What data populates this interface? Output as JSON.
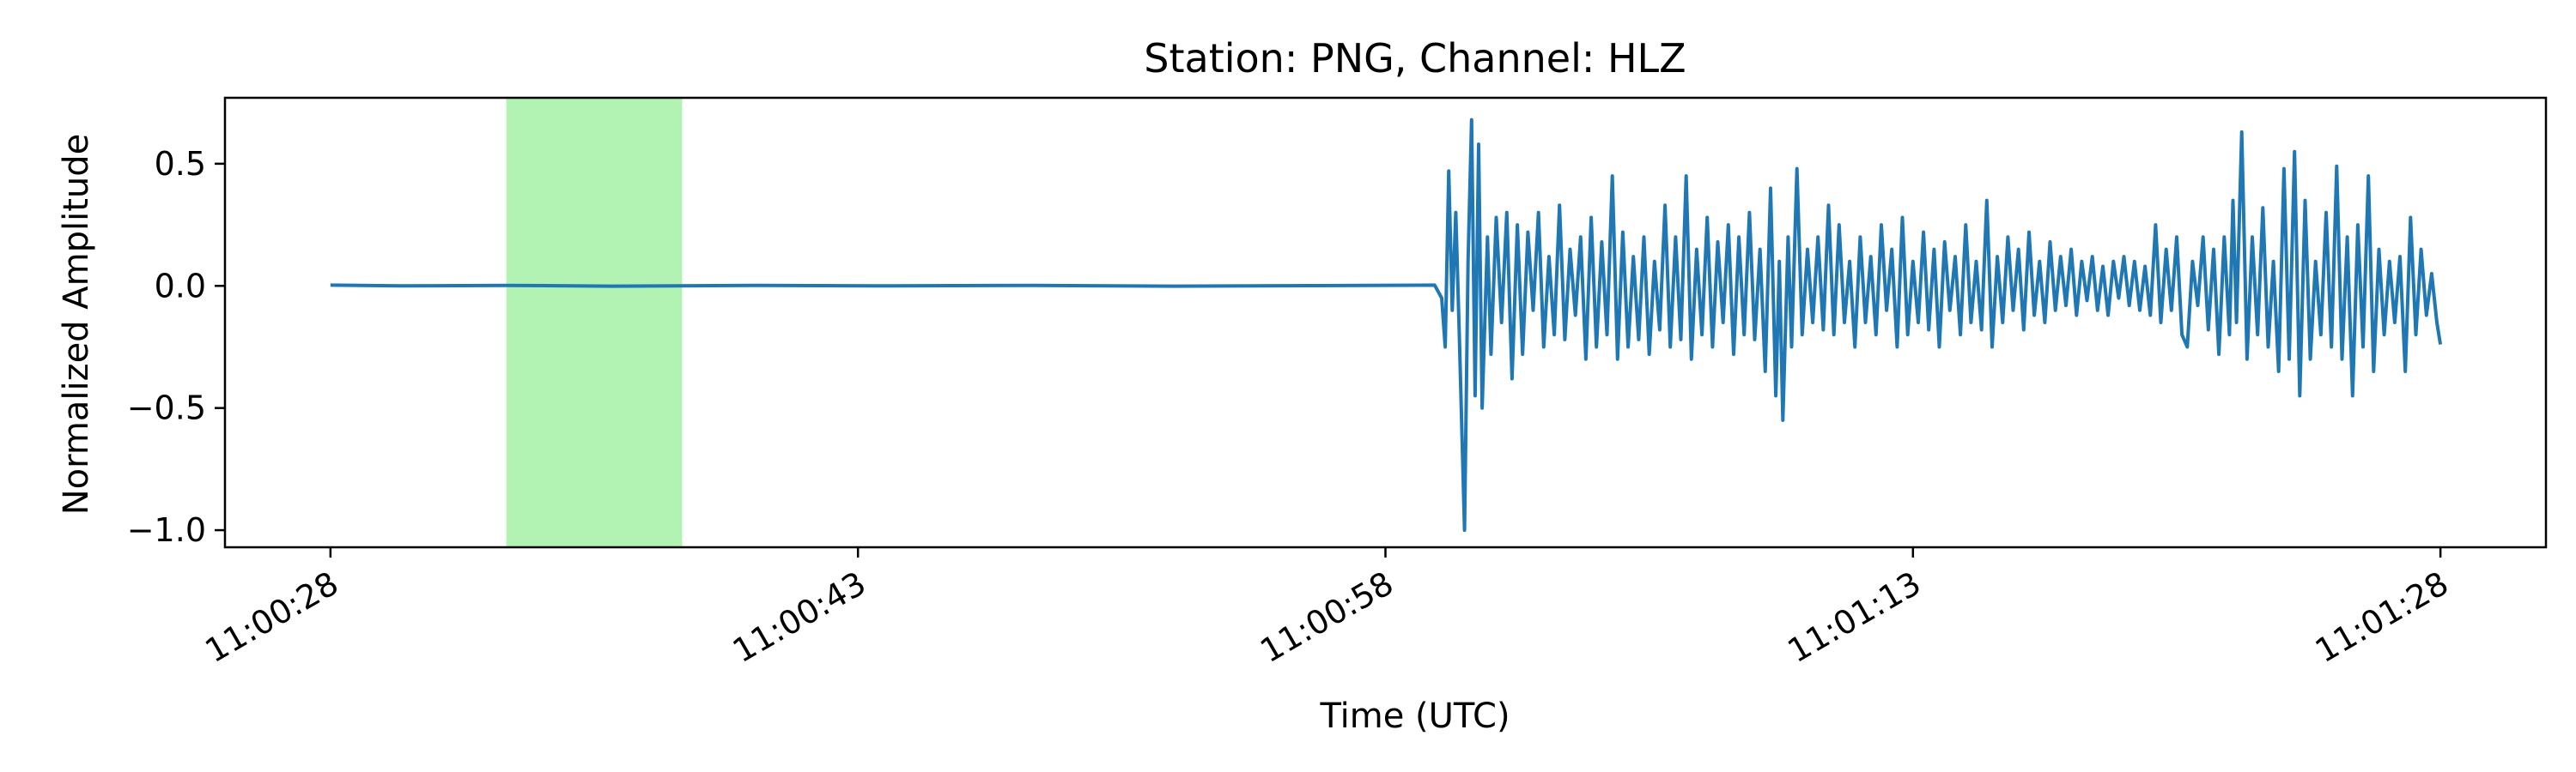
{
  "chart_data": {
    "type": "line",
    "title": "Station: PNG, Channel: HLZ",
    "xlabel": "Time (UTC)",
    "ylabel": "Normalized Amplitude",
    "xlim": [
      "11:00:25",
      "11:01:31"
    ],
    "ylim": [
      -1.07,
      0.77
    ],
    "grid": false,
    "x_ticks": [
      "11:00:28",
      "11:00:43",
      "11:00:58",
      "11:01:13",
      "11:01:28"
    ],
    "y_ticks": [
      0.5,
      0.0,
      -0.5,
      -1.0
    ],
    "y_tick_labels": [
      "0.5",
      "0.0",
      "−0.5",
      "−1.0"
    ],
    "highlight": {
      "start": "11:00:33",
      "end": "11:00:38",
      "color": "#b2f2b2"
    },
    "series": [
      {
        "color": "#1f77b4",
        "points": [
          [
            "11:00:28.0",
            0.003
          ],
          [
            "11:00:30.0",
            0.0
          ],
          [
            "11:00:33.0",
            0.002
          ],
          [
            "11:00:36.0",
            -0.001
          ],
          [
            "11:00:40.0",
            0.002
          ],
          [
            "11:00:44.0",
            0.0
          ],
          [
            "11:00:48.0",
            0.002
          ],
          [
            "11:00:52.0",
            -0.001
          ],
          [
            "11:00:56.0",
            0.001
          ],
          [
            "11:00:59.4",
            0.003
          ],
          [
            "11:00:59.6",
            -0.05
          ],
          [
            "11:00:59.7",
            -0.25
          ],
          [
            "11:00:59.8",
            0.47
          ],
          [
            "11:00:59.9",
            -0.1
          ],
          [
            "11:01:00.0",
            0.3
          ],
          [
            "11:01:00.1",
            -0.2
          ],
          [
            "11:01:00.25",
            -1.0
          ],
          [
            "11:01:00.35",
            0.1
          ],
          [
            "11:01:00.45",
            0.68
          ],
          [
            "11:01:00.55",
            -0.45
          ],
          [
            "11:01:00.65",
            0.58
          ],
          [
            "11:01:00.75",
            -0.5
          ],
          [
            "11:01:00.9",
            0.2
          ],
          [
            "11:01:01.0",
            -0.28
          ],
          [
            "11:01:01.15",
            0.28
          ],
          [
            "11:01:01.3",
            -0.15
          ],
          [
            "11:01:01.45",
            0.3
          ],
          [
            "11:01:01.6",
            -0.38
          ],
          [
            "11:01:01.75",
            0.25
          ],
          [
            "11:01:01.9",
            -0.28
          ],
          [
            "11:01:02.05",
            0.22
          ],
          [
            "11:01:02.2",
            -0.1
          ],
          [
            "11:01:02.35",
            0.3
          ],
          [
            "11:01:02.5",
            -0.25
          ],
          [
            "11:01:02.65",
            0.12
          ],
          [
            "11:01:02.8",
            -0.2
          ],
          [
            "11:01:02.95",
            0.33
          ],
          [
            "11:01:03.1",
            -0.22
          ],
          [
            "11:01:03.25",
            0.15
          ],
          [
            "11:01:03.4",
            -0.12
          ],
          [
            "11:01:03.55",
            0.2
          ],
          [
            "11:01:03.7",
            -0.3
          ],
          [
            "11:01:03.85",
            0.28
          ],
          [
            "11:01:04.0",
            -0.25
          ],
          [
            "11:01:04.15",
            0.18
          ],
          [
            "11:01:04.3",
            -0.2
          ],
          [
            "11:01:04.45",
            0.45
          ],
          [
            "11:01:04.6",
            -0.3
          ],
          [
            "11:01:04.75",
            0.22
          ],
          [
            "11:01:04.9",
            -0.25
          ],
          [
            "11:01:05.05",
            0.12
          ],
          [
            "11:01:05.2",
            -0.22
          ],
          [
            "11:01:05.35",
            0.2
          ],
          [
            "11:01:05.5",
            -0.28
          ],
          [
            "11:01:05.65",
            0.1
          ],
          [
            "11:01:05.8",
            -0.18
          ],
          [
            "11:01:05.95",
            0.33
          ],
          [
            "11:01:06.1",
            -0.25
          ],
          [
            "11:01:06.25",
            0.2
          ],
          [
            "11:01:06.4",
            -0.22
          ],
          [
            "11:01:06.55",
            0.45
          ],
          [
            "11:01:06.7",
            -0.3
          ],
          [
            "11:01:06.85",
            0.15
          ],
          [
            "11:01:07.0",
            -0.2
          ],
          [
            "11:01:07.15",
            0.28
          ],
          [
            "11:01:07.3",
            -0.25
          ],
          [
            "11:01:07.45",
            0.18
          ],
          [
            "11:01:07.6",
            -0.15
          ],
          [
            "11:01:07.75",
            0.25
          ],
          [
            "11:01:07.9",
            -0.28
          ],
          [
            "11:01:08.05",
            0.2
          ],
          [
            "11:01:08.2",
            -0.2
          ],
          [
            "11:01:08.35",
            0.3
          ],
          [
            "11:01:08.5",
            -0.22
          ],
          [
            "11:01:08.65",
            0.15
          ],
          [
            "11:01:08.8",
            -0.35
          ],
          [
            "11:01:08.95",
            0.4
          ],
          [
            "11:01:09.1",
            -0.45
          ],
          [
            "11:01:09.2",
            0.1
          ],
          [
            "11:01:09.3",
            -0.55
          ],
          [
            "11:01:09.45",
            0.2
          ],
          [
            "11:01:09.55",
            -0.25
          ],
          [
            "11:01:09.7",
            0.48
          ],
          [
            "11:01:09.85",
            -0.2
          ],
          [
            "11:01:10.0",
            0.15
          ],
          [
            "11:01:10.15",
            -0.15
          ],
          [
            "11:01:10.3",
            0.2
          ],
          [
            "11:01:10.45",
            -0.18
          ],
          [
            "11:01:10.6",
            0.33
          ],
          [
            "11:01:10.75",
            -0.2
          ],
          [
            "11:01:10.9",
            0.25
          ],
          [
            "11:01:11.05",
            -0.15
          ],
          [
            "11:01:11.2",
            0.1
          ],
          [
            "11:01:11.35",
            -0.25
          ],
          [
            "11:01:11.5",
            0.2
          ],
          [
            "11:01:11.65",
            -0.15
          ],
          [
            "11:01:11.8",
            0.12
          ],
          [
            "11:01:11.95",
            -0.2
          ],
          [
            "11:01:12.1",
            0.25
          ],
          [
            "11:01:12.25",
            -0.1
          ],
          [
            "11:01:12.4",
            0.15
          ],
          [
            "11:01:12.55",
            -0.25
          ],
          [
            "11:01:12.7",
            0.28
          ],
          [
            "11:01:12.85",
            -0.2
          ],
          [
            "11:01:13.0",
            0.1
          ],
          [
            "11:01:13.15",
            -0.15
          ],
          [
            "11:01:13.3",
            0.22
          ],
          [
            "11:01:13.45",
            -0.18
          ],
          [
            "11:01:13.6",
            0.15
          ],
          [
            "11:01:13.75",
            -0.25
          ],
          [
            "11:01:13.9",
            0.18
          ],
          [
            "11:01:14.05",
            -0.1
          ],
          [
            "11:01:14.2",
            0.12
          ],
          [
            "11:01:14.35",
            -0.2
          ],
          [
            "11:01:14.5",
            0.25
          ],
          [
            "11:01:14.65",
            -0.15
          ],
          [
            "11:01:14.8",
            0.1
          ],
          [
            "11:01:14.95",
            -0.18
          ],
          [
            "11:01:15.1",
            0.35
          ],
          [
            "11:01:15.25",
            -0.25
          ],
          [
            "11:01:15.4",
            0.12
          ],
          [
            "11:01:15.55",
            -0.15
          ],
          [
            "11:01:15.7",
            0.2
          ],
          [
            "11:01:15.85",
            -0.1
          ],
          [
            "11:01:16.0",
            0.15
          ],
          [
            "11:01:16.15",
            -0.18
          ],
          [
            "11:01:16.3",
            0.22
          ],
          [
            "11:01:16.45",
            -0.12
          ],
          [
            "11:01:16.6",
            0.1
          ],
          [
            "11:01:16.75",
            -0.15
          ],
          [
            "11:01:16.9",
            0.18
          ],
          [
            "11:01:17.05",
            -0.1
          ],
          [
            "11:01:17.2",
            0.12
          ],
          [
            "11:01:17.35",
            -0.08
          ],
          [
            "11:01:17.5",
            0.15
          ],
          [
            "11:01:17.65",
            -0.12
          ],
          [
            "11:01:17.8",
            0.1
          ],
          [
            "11:01:17.95",
            -0.06
          ],
          [
            "11:01:18.1",
            0.12
          ],
          [
            "11:01:18.25",
            -0.1
          ],
          [
            "11:01:18.4",
            0.08
          ],
          [
            "11:01:18.55",
            -0.12
          ],
          [
            "11:01:18.7",
            0.1
          ],
          [
            "11:01:18.85",
            -0.05
          ],
          [
            "11:01:19.0",
            0.12
          ],
          [
            "11:01:19.15",
            -0.08
          ],
          [
            "11:01:19.3",
            0.1
          ],
          [
            "11:01:19.45",
            -0.1
          ],
          [
            "11:01:19.6",
            0.08
          ],
          [
            "11:01:19.75",
            -0.12
          ],
          [
            "11:01:19.9",
            0.25
          ],
          [
            "11:01:20.05",
            -0.15
          ],
          [
            "11:01:20.2",
            0.15
          ],
          [
            "11:01:20.35",
            -0.1
          ],
          [
            "11:01:20.5",
            0.2
          ],
          [
            "11:01:20.65",
            -0.2
          ],
          [
            "11:01:20.8",
            -0.25
          ],
          [
            "11:01:20.95",
            0.1
          ],
          [
            "11:01:21.1",
            -0.08
          ],
          [
            "11:01:21.25",
            0.2
          ],
          [
            "11:01:21.4",
            -0.18
          ],
          [
            "11:01:21.55",
            0.15
          ],
          [
            "11:01:21.7",
            -0.28
          ],
          [
            "11:01:21.85",
            0.2
          ],
          [
            "11:01:22.0",
            -0.2
          ],
          [
            "11:01:22.1",
            0.35
          ],
          [
            "11:01:22.2",
            -0.15
          ],
          [
            "11:01:22.35",
            0.63
          ],
          [
            "11:01:22.5",
            -0.3
          ],
          [
            "11:01:22.65",
            0.2
          ],
          [
            "11:01:22.8",
            -0.2
          ],
          [
            "11:01:22.95",
            0.32
          ],
          [
            "11:01:23.1",
            -0.25
          ],
          [
            "11:01:23.25",
            0.1
          ],
          [
            "11:01:23.4",
            -0.35
          ],
          [
            "11:01:23.55",
            0.48
          ],
          [
            "11:01:23.7",
            -0.3
          ],
          [
            "11:01:23.85",
            0.55
          ],
          [
            "11:01:24.0",
            -0.45
          ],
          [
            "11:01:24.15",
            0.35
          ],
          [
            "11:01:24.3",
            -0.3
          ],
          [
            "11:01:24.45",
            0.1
          ],
          [
            "11:01:24.6",
            -0.2
          ],
          [
            "11:01:24.75",
            0.3
          ],
          [
            "11:01:24.9",
            -0.25
          ],
          [
            "11:01:25.05",
            0.49
          ],
          [
            "11:01:25.2",
            -0.3
          ],
          [
            "11:01:25.35",
            0.2
          ],
          [
            "11:01:25.5",
            -0.45
          ],
          [
            "11:01:25.65",
            0.25
          ],
          [
            "11:01:25.8",
            -0.25
          ],
          [
            "11:01:25.95",
            0.45
          ],
          [
            "11:01:26.1",
            -0.35
          ],
          [
            "11:01:26.25",
            0.15
          ],
          [
            "11:01:26.4",
            -0.2
          ],
          [
            "11:01:26.55",
            0.1
          ],
          [
            "11:01:26.7",
            -0.15
          ],
          [
            "11:01:26.85",
            0.12
          ],
          [
            "11:01:27.0",
            -0.35
          ],
          [
            "11:01:27.15",
            0.28
          ],
          [
            "11:01:27.3",
            -0.2
          ],
          [
            "11:01:27.45",
            0.15
          ],
          [
            "11:01:27.6",
            -0.12
          ],
          [
            "11:01:27.75",
            0.05
          ],
          [
            "11:01:27.9",
            -0.15
          ],
          [
            "11:01:28.0",
            -0.24
          ]
        ]
      }
    ]
  }
}
